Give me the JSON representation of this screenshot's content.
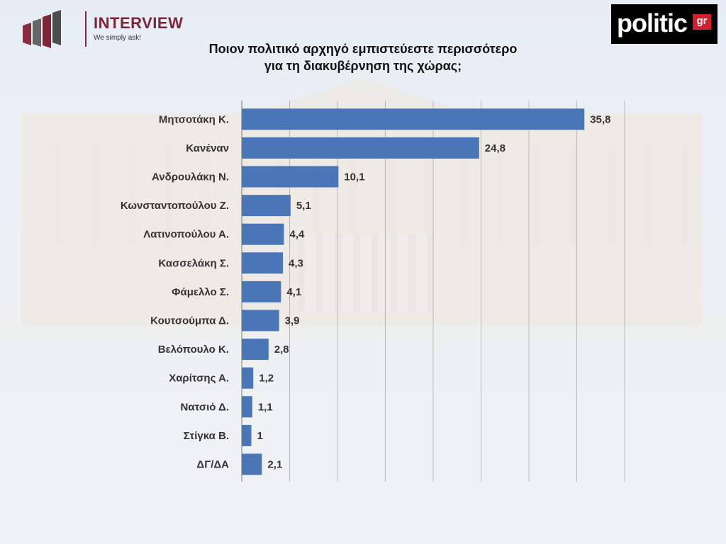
{
  "header": {
    "title_line1": "Ποιον πολιτικό αρχηγό εμπιστεύεστε περισσότερο",
    "title_line2": "για τη διακυβέρνηση της χώρας;",
    "brand_left": {
      "name": "INTERVIEW",
      "tagline": "We simply ask!",
      "color": "#7c2638"
    },
    "brand_right": {
      "name": "politic",
      "suffix": "gr",
      "color": "#d01f2f"
    }
  },
  "chart_data": {
    "type": "bar",
    "orientation": "horizontal",
    "categories": [
      "Μητσοτάκη Κ.",
      "Κανέναν",
      "Ανδρουλάκη Ν.",
      "Κωνσταντοπούλου Ζ.",
      "Λατινοπούλου Α.",
      "Κασσελάκη Σ.",
      "Φάμελλο Σ.",
      "Κουτσούμπα Δ.",
      "Βελόπουλο Κ.",
      "Χαρίτσης Α.",
      "Νατσιό Δ.",
      "Στίγκα Β.",
      "ΔΓ/ΔΑ"
    ],
    "values": [
      35.8,
      24.8,
      10.1,
      5.1,
      4.4,
      4.3,
      4.1,
      3.9,
      2.8,
      1.2,
      1.1,
      1,
      2.1
    ],
    "value_labels": [
      "35,8",
      "24,8",
      "10,1",
      "5,1",
      "4,4",
      "4,3",
      "4,1",
      "3,9",
      "2,8",
      "1,2",
      "1,1",
      "1",
      "2,1"
    ],
    "xlim": [
      0,
      40
    ],
    "grid": true,
    "bar_color": "#4a76b8"
  }
}
